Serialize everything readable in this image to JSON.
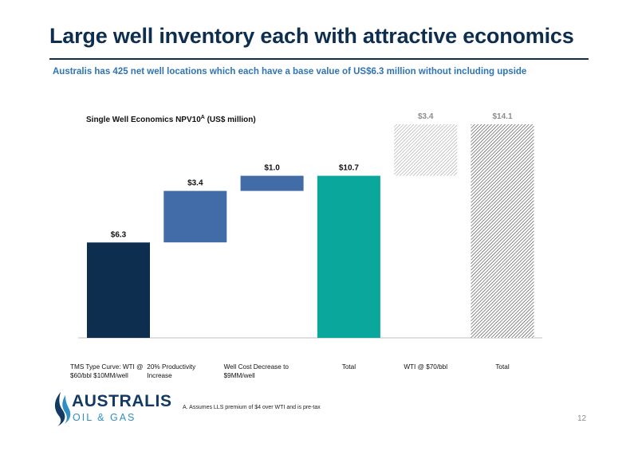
{
  "page": {
    "title": "Large well inventory each with attractive economics",
    "subtitle": "Australis has 425 net well locations which each have a base value of US$6.3 million without including upside",
    "footnote": "A. Assumes LLS premium of $4 over WTI and is pre-tax",
    "page_number": "12"
  },
  "logo": {
    "name": "AUSTRALIS",
    "sub": "OIL & GAS"
  },
  "colors": {
    "title": "#0e2e4f",
    "subtitle": "#2f74b5",
    "base_bar": "#0e2e4f",
    "increment_bar": "#416ca7",
    "total_bar": "#0aa89c",
    "upside_label": "#8c8c8c"
  },
  "chart_data": {
    "type": "bar",
    "subtype": "waterfall",
    "title": "Single Well Economics NPV10A (US$ million)",
    "categories": [
      [
        "TMS Type Curve: WTI @",
        "$60/bbl $10MM/well"
      ],
      [
        "20% Productivity",
        "Increase"
      ],
      [
        "Well Cost Decrease to",
        "$9MM/well"
      ],
      [
        "Total"
      ],
      [
        "WTI @ $70/bbl"
      ],
      [
        "Total"
      ]
    ],
    "values": [
      6.3,
      3.4,
      1.0,
      10.7,
      3.4,
      14.1
    ],
    "bars": [
      {
        "kind": "base",
        "start": 0,
        "end": 6.3,
        "label": "$6.3"
      },
      {
        "kind": "increment",
        "start": 6.3,
        "end": 9.7,
        "label": "$3.4"
      },
      {
        "kind": "increment",
        "start": 9.7,
        "end": 10.7,
        "label": "$1.0"
      },
      {
        "kind": "total",
        "start": 0,
        "end": 10.7,
        "label": "$10.7"
      },
      {
        "kind": "upside",
        "start": 10.7,
        "end": 14.1,
        "label": "$3.4"
      },
      {
        "kind": "upside_total",
        "start": 0,
        "end": 14.1,
        "label": "$14.1"
      }
    ],
    "ylim": [
      0,
      14.1
    ],
    "grid": false,
    "legend": "none"
  }
}
